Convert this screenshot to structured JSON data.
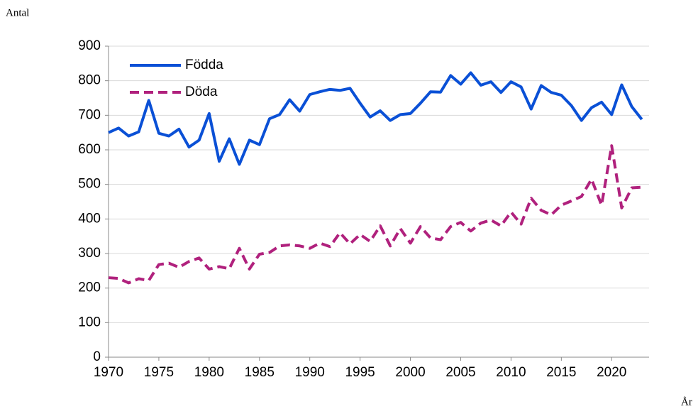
{
  "chart_data": {
    "type": "line",
    "y_label": "Antal",
    "x_label": "År",
    "x": [
      1970,
      1971,
      1972,
      1973,
      1974,
      1975,
      1976,
      1977,
      1978,
      1979,
      1980,
      1981,
      1982,
      1983,
      1984,
      1985,
      1986,
      1987,
      1988,
      1989,
      1990,
      1991,
      1992,
      1993,
      1994,
      1995,
      1996,
      1997,
      1998,
      1999,
      2000,
      2001,
      2002,
      2003,
      2004,
      2005,
      2006,
      2007,
      2008,
      2009,
      2010,
      2011,
      2012,
      2013,
      2014,
      2015,
      2016,
      2017,
      2018,
      2019,
      2020,
      2021,
      2022,
      2023
    ],
    "series": [
      {
        "name": "Födda",
        "color": "#0a50d6",
        "dash": false,
        "values": [
          650,
          663,
          640,
          652,
          743,
          648,
          640,
          660,
          608,
          628,
          705,
          567,
          632,
          558,
          628,
          615,
          690,
          702,
          745,
          712,
          760,
          768,
          775,
          772,
          778,
          735,
          695,
          713,
          685,
          702,
          705,
          735,
          768,
          767,
          815,
          790,
          823,
          787,
          797,
          766,
          797,
          782,
          718,
          786,
          766,
          758,
          728,
          685,
          722,
          738,
          702,
          788,
          725,
          688
        ]
      },
      {
        "name": "Döda",
        "color": "#b0217d",
        "dash": true,
        "values": [
          230,
          228,
          215,
          227,
          222,
          268,
          272,
          260,
          277,
          287,
          255,
          262,
          256,
          315,
          255,
          298,
          303,
          322,
          325,
          322,
          315,
          330,
          320,
          360,
          328,
          355,
          335,
          380,
          322,
          372,
          330,
          378,
          345,
          340,
          378,
          390,
          365,
          388,
          397,
          380,
          420,
          385,
          460,
          425,
          412,
          440,
          452,
          465,
          515,
          440,
          612,
          432,
          490,
          492
        ]
      }
    ],
    "xlim": [
      1970,
      2024
    ],
    "xticks": [
      1970,
      1975,
      1980,
      1985,
      1990,
      1995,
      2000,
      2005,
      2010,
      2015,
      2020
    ],
    "ylim": [
      0,
      900
    ],
    "yticks": [
      0,
      100,
      200,
      300,
      400,
      500,
      600,
      700,
      800,
      900
    ],
    "grid": true,
    "legend": "top-left"
  }
}
